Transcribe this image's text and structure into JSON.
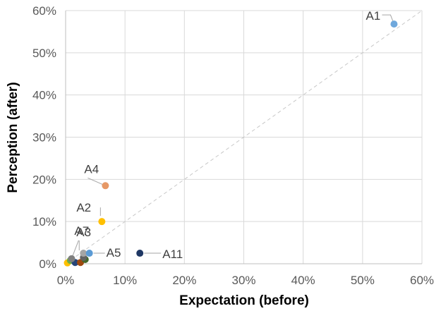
{
  "chart_data": {
    "type": "scatter",
    "xlabel": "Expectation (before)",
    "ylabel": "Perception (after)",
    "xlim": [
      0,
      0.6
    ],
    "ylim": [
      0,
      0.6
    ],
    "x_ticks": [
      "0%",
      "10%",
      "20%",
      "30%",
      "40%",
      "50%",
      "60%"
    ],
    "y_ticks": [
      "0%",
      "10%",
      "20%",
      "30%",
      "40%",
      "50%",
      "60%"
    ],
    "grid": true,
    "reference_line": "y = x (dashed)",
    "points": [
      {
        "label": "A1",
        "x": 0.553,
        "y": 0.568,
        "color": "#6fa8dc"
      },
      {
        "label": "A4",
        "x": 0.067,
        "y": 0.185,
        "color": "#e69866"
      },
      {
        "label": "A2",
        "x": 0.061,
        "y": 0.1,
        "color": "#ffc000"
      },
      {
        "label": "A3",
        "x": 0.03,
        "y": 0.025,
        "color": "#a5a5a5"
      },
      {
        "label": "A5",
        "x": 0.04,
        "y": 0.025,
        "color": "#5b9bd5"
      },
      {
        "label": "A7",
        "x": 0.01,
        "y": 0.012,
        "color": "#7f7f7f"
      },
      {
        "label": "A11",
        "x": 0.125,
        "y": 0.025,
        "color": "#1f3864"
      },
      {
        "label": "",
        "x": 0.003,
        "y": 0.002,
        "color": "#ffc000"
      },
      {
        "label": "",
        "x": 0.008,
        "y": 0.008,
        "color": "#70ad47"
      },
      {
        "label": "",
        "x": 0.016,
        "y": 0.003,
        "color": "#264478"
      },
      {
        "label": "",
        "x": 0.025,
        "y": 0.003,
        "color": "#9e480e"
      },
      {
        "label": "",
        "x": 0.033,
        "y": 0.01,
        "color": "#43682b"
      },
      {
        "label": "",
        "x": 0.03,
        "y": 0.015,
        "color": "#636363"
      }
    ]
  }
}
